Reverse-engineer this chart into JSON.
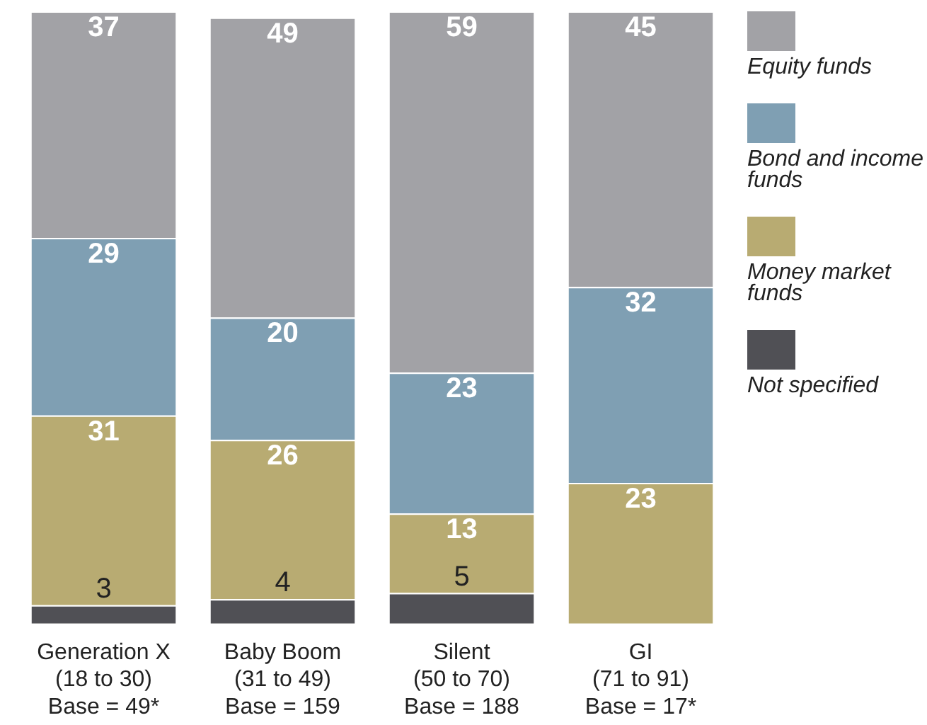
{
  "chart_data": {
    "type": "bar",
    "stacked": true,
    "data_labels": true,
    "legend": "right",
    "categories": [
      "Generation X\n(18 to 30)\nBase = 49*",
      "Baby Boom\n(31 to 49)\nBase = 159",
      "Silent\n(50 to 70)\nBase = 188",
      "GI\n(71 to 91)\nBase = 17*"
    ],
    "series": [
      {
        "name": "Not specified",
        "color": "#505055",
        "values": [
          3,
          4,
          5,
          null
        ]
      },
      {
        "name": "Money market funds",
        "color": "#b8ab72",
        "values": [
          31,
          26,
          13,
          23
        ]
      },
      {
        "name": "Bond and income funds",
        "color": "#7f9fb3",
        "values": [
          29,
          20,
          23,
          32
        ]
      },
      {
        "name": "Equity funds",
        "color": "#a2a2a6",
        "values": [
          37,
          49,
          59,
          45
        ]
      }
    ]
  }
}
